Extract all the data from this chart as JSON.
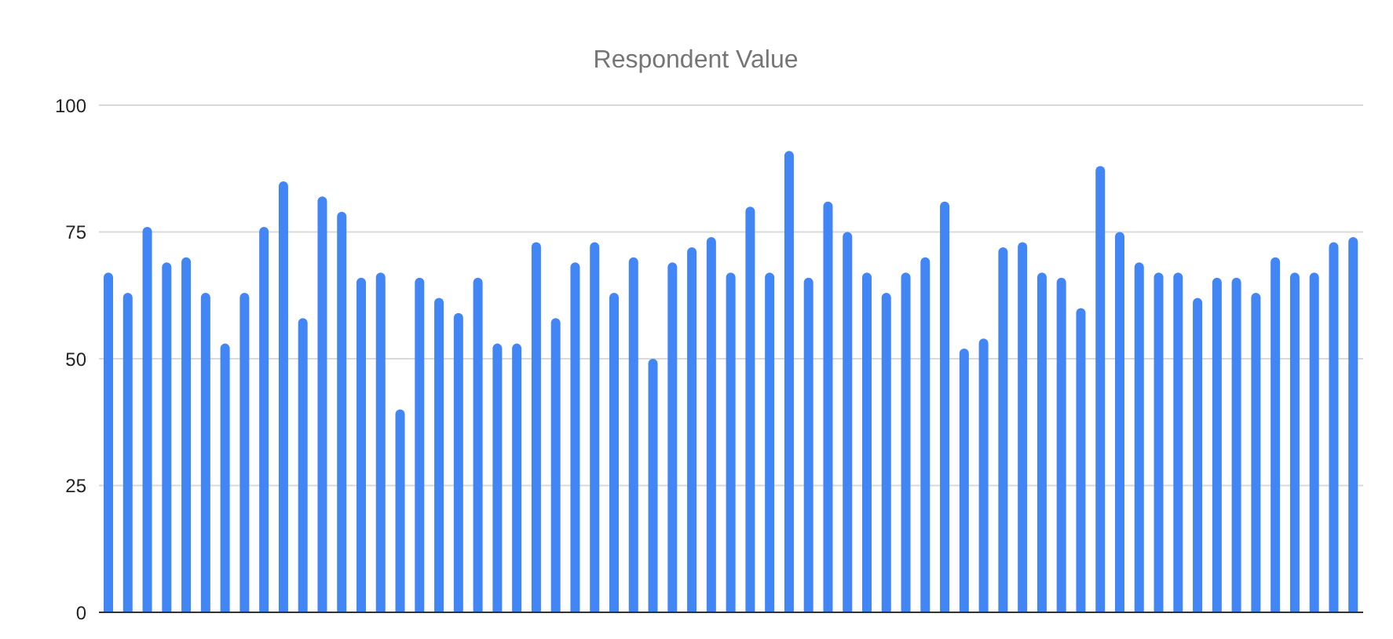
{
  "chart_data": {
    "type": "bar",
    "title": "Respondent Value",
    "categories": [
      null,
      null,
      null,
      null,
      null,
      null,
      null,
      null,
      null,
      null,
      null,
      null,
      null,
      null,
      null,
      null,
      null,
      null,
      null,
      null,
      null,
      null,
      null,
      null,
      null,
      null,
      null,
      null,
      null,
      null,
      null,
      null,
      null,
      null,
      null,
      null,
      null,
      null,
      null,
      null,
      null,
      null,
      null,
      null,
      null,
      null,
      null,
      null,
      null,
      null,
      null,
      null,
      null,
      null,
      null,
      null,
      null,
      null,
      null,
      null,
      null,
      null,
      null,
      null,
      null
    ],
    "values": [
      67,
      63,
      76,
      69,
      70,
      63,
      53,
      63,
      76,
      85,
      58,
      82,
      79,
      66,
      67,
      40,
      66,
      62,
      59,
      66,
      53,
      53,
      73,
      58,
      69,
      73,
      63,
      70,
      50,
      69,
      72,
      74,
      67,
      80,
      67,
      91,
      66,
      81,
      75,
      67,
      63,
      67,
      70,
      81,
      52,
      54,
      72,
      73,
      67,
      66,
      60,
      88,
      75,
      69,
      67,
      67,
      62,
      66,
      66,
      63,
      70,
      67,
      67,
      73,
      74
    ],
    "color": "#4285f4",
    "ylim": [
      0,
      100
    ],
    "yticks": [
      0,
      25,
      50,
      75,
      100
    ],
    "grid": "y"
  }
}
